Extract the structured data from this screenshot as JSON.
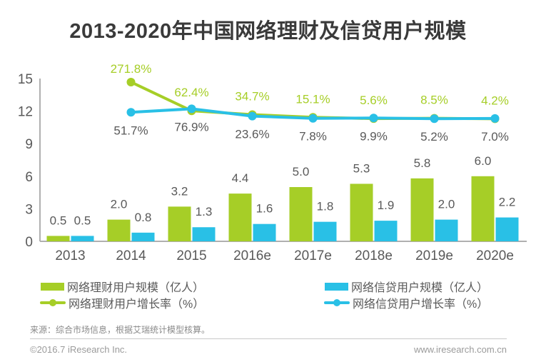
{
  "title": "2013-2020年中国网络理财及信贷用户规模",
  "chart_data": {
    "type": "bar",
    "subtype": "grouped-bars-with-growth-lines",
    "categories": [
      "2013",
      "2014",
      "2015",
      "2016e",
      "2017e",
      "2018e",
      "2019e",
      "2020e"
    ],
    "bar_series": [
      {
        "name": "网络理财用户规模（亿人）",
        "color": "#a6ce27",
        "values": [
          0.5,
          2.0,
          3.2,
          4.4,
          5.0,
          5.3,
          5.8,
          6.0
        ]
      },
      {
        "name": "网络信贷用户规模（亿人）",
        "color": "#29c0e6",
        "values": [
          0.5,
          0.8,
          1.3,
          1.6,
          1.8,
          1.9,
          2.0,
          2.2
        ]
      }
    ],
    "line_series": [
      {
        "name": "网络理财用户增长率（%）",
        "color": "#a6ce27",
        "label_color": "#a6ce27",
        "label_position": "above",
        "values": [
          null,
          271.8,
          62.4,
          34.7,
          15.1,
          5.6,
          8.5,
          4.2
        ]
      },
      {
        "name": "网络信贷用户增长率（%）",
        "color": "#29c0e6",
        "label_color": "#595959",
        "label_position": "below",
        "values": [
          null,
          51.7,
          76.9,
          23.6,
          7.8,
          9.9,
          5.2,
          7.0
        ]
      }
    ],
    "y_axis": {
      "min": 0,
      "max": 15,
      "ticks": [
        0,
        3,
        6,
        9,
        12,
        15
      ]
    },
    "grid": false,
    "legend_position": "bottom",
    "value_labels_shown": true
  },
  "footer": {
    "source": "来源：综合市场信息，根据艾瑞统计模型核算。",
    "copyright": "©2016.7 iResearch Inc.",
    "website": "www.iresearch.com.cn"
  },
  "style_colors": {
    "title_text": "#3a3a3a",
    "label_text": "#595959",
    "axis_line": "#b0b0b0",
    "footer_text": "#9b9b9b"
  }
}
